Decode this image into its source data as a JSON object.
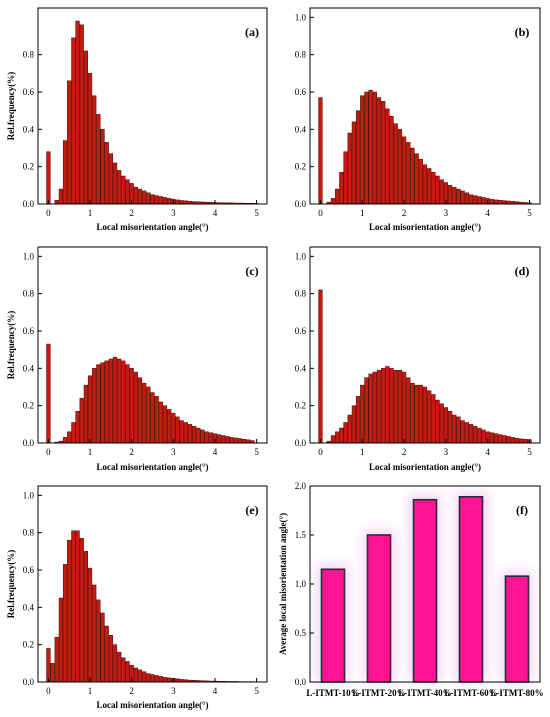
{
  "chart_data": [
    {
      "type": "bar",
      "panel": "(a)",
      "xlabel": "Local misorientation angle(°)",
      "ylabel": "Rel.frequency(%)",
      "xlim": [
        -0.25,
        5.25
      ],
      "ylim": [
        0,
        1.05
      ],
      "xticks": [
        "0",
        "1",
        "2",
        "3",
        "4",
        "5"
      ],
      "yticks": [
        "0.0",
        "0.2",
        "0.4",
        "0.6",
        "0.8"
      ],
      "bin_width": 0.1,
      "x": [
        0.0,
        0.1,
        0.2,
        0.3,
        0.4,
        0.5,
        0.6,
        0.7,
        0.8,
        0.9,
        1.0,
        1.1,
        1.2,
        1.3,
        1.4,
        1.5,
        1.6,
        1.7,
        1.8,
        1.9,
        2.0,
        2.1,
        2.2,
        2.3,
        2.4,
        2.5,
        2.6,
        2.7,
        2.8,
        2.9,
        3.0,
        3.1,
        3.2,
        3.3,
        3.4,
        3.5,
        3.6,
        3.7,
        3.8,
        3.9,
        4.0,
        4.1,
        4.2,
        4.3,
        4.4,
        4.5,
        4.6,
        4.7,
        4.8,
        4.9,
        5.0
      ],
      "values": [
        0.28,
        0.0,
        0.02,
        0.08,
        0.34,
        0.66,
        0.89,
        0.98,
        0.96,
        0.82,
        0.7,
        0.58,
        0.48,
        0.4,
        0.33,
        0.27,
        0.22,
        0.18,
        0.15,
        0.13,
        0.11,
        0.09,
        0.08,
        0.07,
        0.06,
        0.05,
        0.045,
        0.04,
        0.035,
        0.03,
        0.026,
        0.022,
        0.019,
        0.017,
        0.015,
        0.013,
        0.012,
        0.011,
        0.01,
        0.009,
        0.008,
        0.007,
        0.007,
        0.006,
        0.006,
        0.005,
        0.005,
        0.004,
        0.004,
        0.004,
        0.003
      ]
    },
    {
      "type": "bar",
      "panel": "(b)",
      "xlabel": "Local misorientation angle(°)",
      "ylabel": "",
      "xlim": [
        -0.25,
        5.25
      ],
      "ylim": [
        0,
        1.05
      ],
      "xticks": [
        "0",
        "1",
        "2",
        "3",
        "4",
        "5"
      ],
      "yticks": [
        "0.0",
        "0.2",
        "0.4",
        "0.6",
        "0.8",
        "1.0"
      ],
      "bin_width": 0.1,
      "x": [
        0.0,
        0.1,
        0.2,
        0.3,
        0.4,
        0.5,
        0.6,
        0.7,
        0.8,
        0.9,
        1.0,
        1.1,
        1.2,
        1.3,
        1.4,
        1.5,
        1.6,
        1.7,
        1.8,
        1.9,
        2.0,
        2.1,
        2.2,
        2.3,
        2.4,
        2.5,
        2.6,
        2.7,
        2.8,
        2.9,
        3.0,
        3.1,
        3.2,
        3.3,
        3.4,
        3.5,
        3.6,
        3.7,
        3.8,
        3.9,
        4.0,
        4.1,
        4.2,
        4.3,
        4.4,
        4.5,
        4.6,
        4.7,
        4.8,
        4.9,
        5.0
      ],
      "values": [
        0.57,
        0.0,
        0.01,
        0.03,
        0.08,
        0.17,
        0.28,
        0.38,
        0.44,
        0.5,
        0.58,
        0.6,
        0.61,
        0.6,
        0.57,
        0.55,
        0.51,
        0.47,
        0.43,
        0.4,
        0.36,
        0.33,
        0.3,
        0.27,
        0.24,
        0.21,
        0.19,
        0.17,
        0.15,
        0.13,
        0.115,
        0.1,
        0.09,
        0.08,
        0.07,
        0.06,
        0.05,
        0.045,
        0.04,
        0.035,
        0.03,
        0.025,
        0.022,
        0.02,
        0.018,
        0.016,
        0.014,
        0.012,
        0.01,
        0.008,
        0.006
      ]
    },
    {
      "type": "bar",
      "panel": "(c)",
      "xlabel": "Local misorientation angle(°)",
      "ylabel": "Rel.frequency(%)",
      "xlim": [
        -0.25,
        5.25
      ],
      "ylim": [
        0,
        1.05
      ],
      "xticks": [
        "0",
        "1",
        "2",
        "3",
        "4",
        "5"
      ],
      "yticks": [
        "0.0",
        "0.2",
        "0.4",
        "0.6",
        "0.8",
        "1.0"
      ],
      "bin_width": 0.1,
      "x": [
        0.0,
        0.1,
        0.2,
        0.3,
        0.4,
        0.5,
        0.6,
        0.7,
        0.8,
        0.9,
        1.0,
        1.1,
        1.2,
        1.3,
        1.4,
        1.5,
        1.6,
        1.7,
        1.8,
        1.9,
        2.0,
        2.1,
        2.2,
        2.3,
        2.4,
        2.5,
        2.6,
        2.7,
        2.8,
        2.9,
        3.0,
        3.1,
        3.2,
        3.3,
        3.4,
        3.5,
        3.6,
        3.7,
        3.8,
        3.9,
        4.0,
        4.1,
        4.2,
        4.3,
        4.4,
        4.5,
        4.6,
        4.7,
        4.8,
        4.9,
        5.0
      ],
      "values": [
        0.53,
        0.0,
        0.005,
        0.01,
        0.03,
        0.06,
        0.11,
        0.17,
        0.24,
        0.31,
        0.36,
        0.4,
        0.42,
        0.43,
        0.44,
        0.45,
        0.46,
        0.45,
        0.44,
        0.42,
        0.4,
        0.38,
        0.35,
        0.32,
        0.3,
        0.27,
        0.25,
        0.22,
        0.2,
        0.18,
        0.16,
        0.14,
        0.12,
        0.11,
        0.1,
        0.09,
        0.08,
        0.07,
        0.06,
        0.055,
        0.05,
        0.045,
        0.04,
        0.035,
        0.03,
        0.027,
        0.024,
        0.02,
        0.017,
        0.013,
        0.0
      ]
    },
    {
      "type": "bar",
      "panel": "(d)",
      "xlabel": "Local misorientation angle(°)",
      "ylabel": "",
      "xlim": [
        -0.25,
        5.25
      ],
      "ylim": [
        0,
        1.05
      ],
      "xticks": [
        "0",
        "1",
        "2",
        "3",
        "4",
        "5"
      ],
      "yticks": [
        "0.0",
        "0.2",
        "0.4",
        "0.6",
        "0.8",
        "1.0"
      ],
      "bin_width": 0.1,
      "x": [
        0.0,
        0.1,
        0.2,
        0.3,
        0.4,
        0.5,
        0.6,
        0.7,
        0.8,
        0.9,
        1.0,
        1.1,
        1.2,
        1.3,
        1.4,
        1.5,
        1.6,
        1.7,
        1.8,
        1.9,
        2.0,
        2.1,
        2.2,
        2.3,
        2.4,
        2.5,
        2.6,
        2.7,
        2.8,
        2.9,
        3.0,
        3.1,
        3.2,
        3.3,
        3.4,
        3.5,
        3.6,
        3.7,
        3.8,
        3.9,
        4.0,
        4.1,
        4.2,
        4.3,
        4.4,
        4.5,
        4.6,
        4.7,
        4.8,
        4.9,
        5.0
      ],
      "values": [
        0.82,
        0.0,
        0.01,
        0.04,
        0.06,
        0.08,
        0.11,
        0.15,
        0.2,
        0.25,
        0.31,
        0.35,
        0.37,
        0.38,
        0.39,
        0.4,
        0.41,
        0.4,
        0.39,
        0.39,
        0.38,
        0.35,
        0.32,
        0.31,
        0.31,
        0.3,
        0.28,
        0.26,
        0.23,
        0.21,
        0.19,
        0.17,
        0.15,
        0.14,
        0.12,
        0.11,
        0.1,
        0.09,
        0.08,
        0.07,
        0.06,
        0.055,
        0.05,
        0.045,
        0.04,
        0.035,
        0.03,
        0.025,
        0.022,
        0.02,
        0.018
      ]
    },
    {
      "type": "bar",
      "panel": "(e)",
      "xlabel": "Local misorientation angle(°)",
      "ylabel": "Rel.frequency(%)",
      "xlim": [
        -0.25,
        5.25
      ],
      "ylim": [
        0,
        1.05
      ],
      "xticks": [
        "0",
        "1",
        "2",
        "3",
        "4",
        "5"
      ],
      "yticks": [
        "0.0",
        "0.2",
        "0.4",
        "0.6",
        "0.8",
        "1.0"
      ],
      "bin_width": 0.1,
      "x": [
        0.0,
        0.1,
        0.2,
        0.3,
        0.4,
        0.5,
        0.6,
        0.7,
        0.8,
        0.9,
        1.0,
        1.1,
        1.2,
        1.3,
        1.4,
        1.5,
        1.6,
        1.7,
        1.8,
        1.9,
        2.0,
        2.1,
        2.2,
        2.3,
        2.4,
        2.5,
        2.6,
        2.7,
        2.8,
        2.9,
        3.0,
        3.1,
        3.2,
        3.3,
        3.4,
        3.5,
        3.6,
        3.7,
        3.8,
        3.9,
        4.0,
        4.1,
        4.2,
        4.3,
        4.4,
        4.5,
        4.6,
        4.7,
        4.8,
        4.9,
        5.0
      ],
      "values": [
        0.18,
        0.1,
        0.24,
        0.45,
        0.63,
        0.76,
        0.81,
        0.81,
        0.77,
        0.7,
        0.61,
        0.52,
        0.44,
        0.37,
        0.3,
        0.25,
        0.2,
        0.16,
        0.13,
        0.11,
        0.09,
        0.075,
        0.065,
        0.055,
        0.045,
        0.04,
        0.035,
        0.03,
        0.025,
        0.022,
        0.02,
        0.017,
        0.014,
        0.012,
        0.01,
        0.009,
        0.008,
        0.007,
        0.006,
        0.005,
        0.005,
        0.004,
        0.004,
        0.003,
        0.003,
        0.003,
        0.002,
        0.002,
        0.002,
        0.002,
        0.001
      ]
    },
    {
      "type": "bar",
      "panel": "(f)",
      "xlabel": "",
      "ylabel": "Average local misorientation angle(°)",
      "ylim": [
        0,
        2.0
      ],
      "yticks": [
        "0.0",
        "0.5",
        "1.0",
        "1.5",
        "2.0"
      ],
      "categories": [
        "L-ITMT-10%",
        "L-ITMT-20%",
        "L-ITMT-40%",
        "L-ITMT-60%",
        "L-ITMT-80%"
      ],
      "values": [
        1.15,
        1.5,
        1.86,
        1.89,
        1.08
      ]
    }
  ],
  "colors": {
    "histogram_bar": "#c21b12",
    "histogram_edge": "#4a0a08",
    "panel_f_bar": "#ff1493",
    "panel_f_edge": "#2a2a3a",
    "halo": "#f3d6f3"
  }
}
